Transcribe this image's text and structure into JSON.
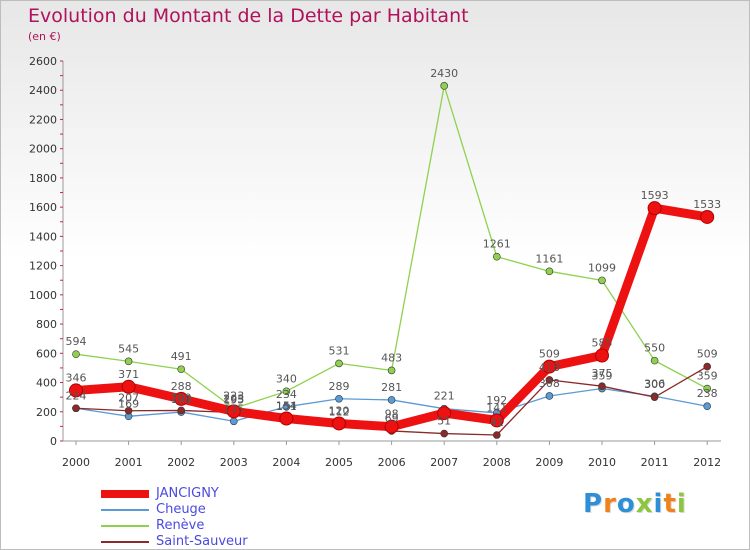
{
  "title": "Evolution du Montant de la Dette par Habitant",
  "subtitle": "(en €)",
  "logo_text": "Proxiti",
  "logo_colors": [
    "#2e8fd6",
    "#f0821e",
    "#2e8fd6",
    "#8cc63f",
    "#2e8fd6",
    "#f0821e",
    "#8cc63f"
  ],
  "chart_data": {
    "type": "line",
    "title": "Evolution du Montant de la Dette par Habitant",
    "subtitle": "(en €)",
    "xlabel": "",
    "ylabel": "",
    "categories": [
      "2000",
      "2001",
      "2002",
      "2003",
      "2004",
      "2005",
      "2006",
      "2007",
      "2008",
      "2009",
      "2010",
      "2011",
      "2012"
    ],
    "ylim": [
      0,
      2600
    ],
    "yticks": [
      0,
      200,
      400,
      600,
      800,
      1000,
      1200,
      1400,
      1600,
      1800,
      2000,
      2200,
      2400,
      2600
    ],
    "grid": false,
    "legend_position": "bottom-left",
    "series": [
      {
        "name": "JANCIGNY",
        "color": "#ee1111",
        "values": [
          346,
          371,
          288,
          203,
          154,
          120,
          98,
          191,
          141,
          509,
          585,
          1593,
          1533
        ],
        "labels": [
          "346",
          "371",
          "288",
          "203",
          "154",
          "120",
          "98",
          "",
          "141",
          "509",
          "585",
          "1593",
          "1533"
        ]
      },
      {
        "name": "Cheuge",
        "color": "#5b9bd5",
        "values": [
          224,
          169,
          198,
          135,
          234,
          289,
          281,
          221,
          192,
          308,
          359,
          306,
          238
        ],
        "labels": [
          "224",
          "169",
          "198",
          "135",
          "234",
          "289",
          "281",
          "221",
          "192",
          "308",
          "359",
          "306",
          "238"
        ]
      },
      {
        "name": "Renève",
        "color": "#8fd14f",
        "values": [
          594,
          545,
          491,
          223,
          340,
          531,
          483,
          2430,
          1261,
          1161,
          1099,
          550,
          359
        ],
        "labels": [
          "594",
          "545",
          "491",
          "223",
          "340",
          "531",
          "483",
          "2430",
          "1261",
          "1161",
          "1099",
          "550",
          "359"
        ]
      },
      {
        "name": "Saint-Sauveur",
        "color": "#8b2a2a",
        "values": [
          224,
          207,
          209,
          195,
          151,
          112,
          69,
          51,
          41,
          418,
          375,
          300,
          509
        ],
        "labels": [
          "",
          "207",
          "209",
          "195",
          "151",
          "112",
          "69",
          "51",
          "41",
          "418",
          "375",
          "300",
          "509"
        ]
      }
    ]
  }
}
